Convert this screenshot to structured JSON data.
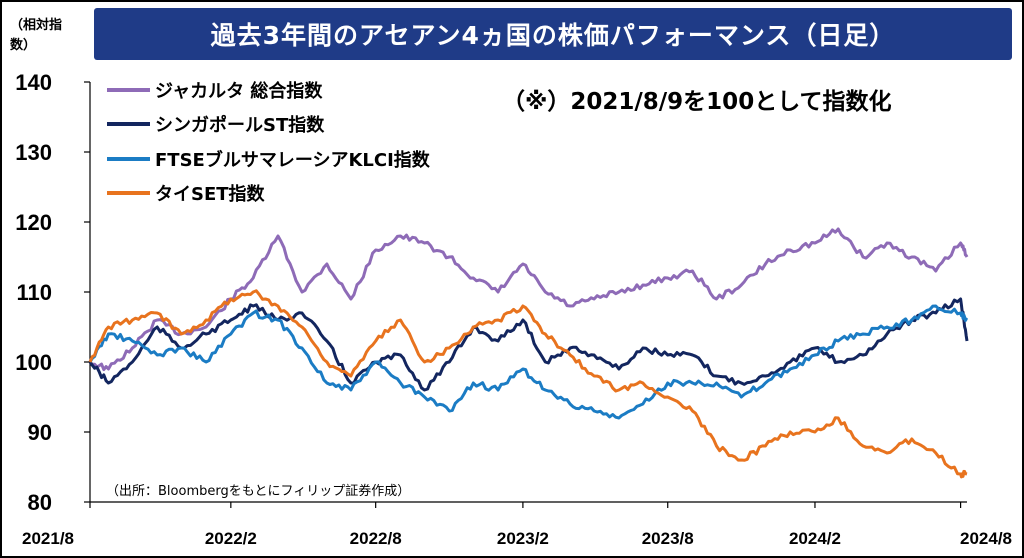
{
  "title": "過去3年間のアセアン4ヵ国の株価パフォーマンス（日足）",
  "unit_label": "（相対指数）",
  "note": "（※）2021/8/9を100として指数化",
  "source": "（出所：Bloombergをもとにフィリップ証券作成）",
  "colors": {
    "banner": "#1f3b87",
    "jakarta": "#8e6bb7",
    "singapore": "#13265f",
    "klci": "#1b7cc4",
    "set": "#e8731e"
  },
  "chart_data": {
    "type": "line",
    "title": "過去3年間のアセアン4ヵ国の株価パフォーマンス（日足）",
    "xlabel": "",
    "ylabel": "（相対指数）",
    "ylim": [
      80,
      140
    ],
    "yticks": [
      80,
      90,
      100,
      110,
      120,
      130,
      140
    ],
    "xlim": [
      "2021-08-09",
      "2024-08-09"
    ],
    "xtick_labels": [
      {
        "date": "2021-08-01",
        "label": "2021/8"
      },
      {
        "date": "2022-02-01",
        "label": "2022/2"
      },
      {
        "date": "2022-08-01",
        "label": "2022/8"
      },
      {
        "date": "2023-02-01",
        "label": "2023/2"
      },
      {
        "date": "2023-08-01",
        "label": "2023/8"
      },
      {
        "date": "2024-02-01",
        "label": "2024/2"
      },
      {
        "date": "2024-08-01",
        "label": "2024/8"
      }
    ],
    "grid": false,
    "legend": "top-left",
    "x": [
      "2021-08-09",
      "2021-09-01",
      "2021-10-01",
      "2021-11-01",
      "2021-12-01",
      "2022-01-01",
      "2022-02-01",
      "2022-03-01",
      "2022-04-01",
      "2022-05-01",
      "2022-06-01",
      "2022-07-01",
      "2022-08-01",
      "2022-09-01",
      "2022-10-01",
      "2022-11-01",
      "2022-12-01",
      "2023-01-01",
      "2023-02-01",
      "2023-03-01",
      "2023-04-01",
      "2023-05-01",
      "2023-06-01",
      "2023-07-01",
      "2023-08-01",
      "2023-09-01",
      "2023-10-01",
      "2023-11-01",
      "2023-12-01",
      "2024-01-01",
      "2024-02-01",
      "2024-03-01",
      "2024-04-01",
      "2024-05-01",
      "2024-06-01",
      "2024-07-01",
      "2024-08-01",
      "2024-08-09"
    ],
    "series": [
      {
        "name": "ジャカルタ 総合指数",
        "color_key": "jakarta",
        "values": [
          100,
          99,
          102,
          106,
          104,
          105,
          109,
          112,
          118,
          110,
          114,
          109,
          116,
          118,
          117,
          115,
          112,
          110,
          114,
          110,
          108,
          109,
          110,
          111,
          112,
          113,
          109,
          111,
          114,
          116,
          117,
          119,
          115,
          117,
          115,
          113,
          117,
          115
        ]
      },
      {
        "name": "シンガポールST指数",
        "color_key": "singapore",
        "values": [
          100,
          97,
          100,
          105,
          102,
          104,
          106,
          108,
          106,
          107,
          103,
          97,
          100,
          101,
          96,
          100,
          105,
          103,
          106,
          100,
          102,
          101,
          99,
          102,
          101,
          101,
          98,
          97,
          98,
          100,
          102,
          100,
          101,
          104,
          106,
          107,
          109,
          103
        ]
      },
      {
        "name": "FTSEブルサマレーシアKLCI指数",
        "color_key": "klci",
        "values": [
          100,
          104,
          103,
          101,
          102,
          100,
          104,
          107,
          106,
          102,
          97,
          96,
          100,
          97,
          95,
          93,
          97,
          96,
          99,
          96,
          94,
          93,
          92,
          94,
          97,
          97,
          97,
          95,
          97,
          99,
          101,
          103,
          104,
          105,
          106,
          108,
          107,
          106
        ]
      },
      {
        "name": "タイSET指数",
        "color_key": "set",
        "values": [
          100,
          105,
          106,
          107,
          104,
          106,
          109,
          110,
          108,
          105,
          100,
          98,
          103,
          106,
          100,
          102,
          105,
          106,
          108,
          104,
          101,
          98,
          96,
          97,
          95,
          93,
          88,
          86,
          88,
          90,
          90,
          92,
          88,
          87,
          89,
          87,
          84,
          84
        ]
      }
    ]
  }
}
